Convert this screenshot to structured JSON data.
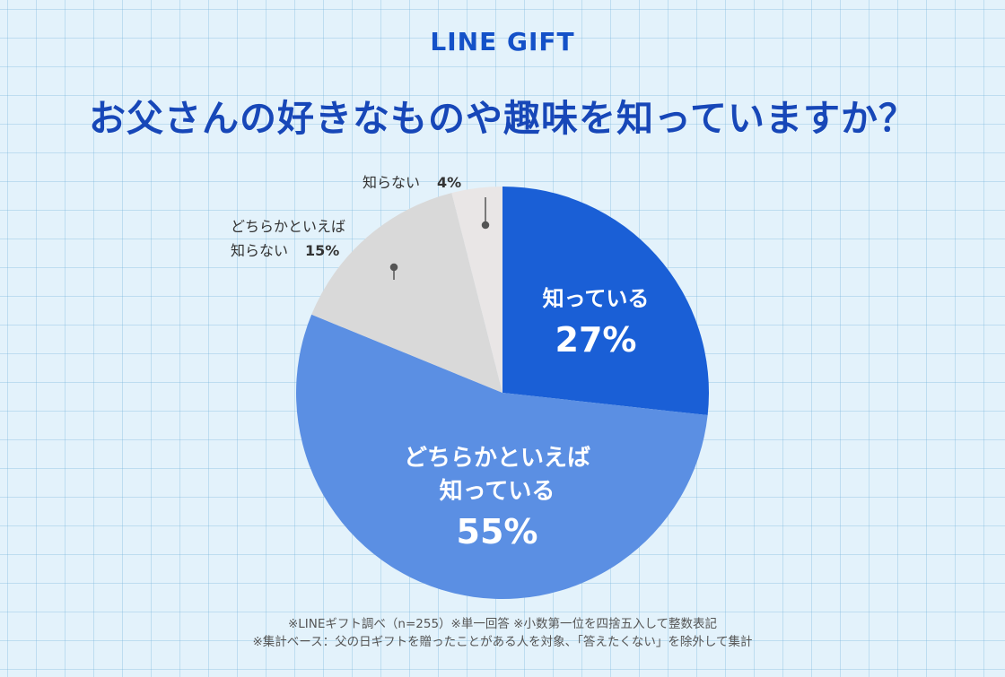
{
  "header": {
    "logo_text": "LINE GIFT",
    "title": "お父さんの好きなものや趣味を知っていますか？"
  },
  "chart_data": {
    "type": "pie",
    "title": "お父さんの好きなものや趣味を知っていますか？",
    "start": "12 o'clock",
    "direction": "clockwise",
    "slices": [
      {
        "label": "知っている",
        "value": 27,
        "value_label": "27%",
        "color": "#1a5fd6",
        "label_color": "#ffffff",
        "label_position": "inside"
      },
      {
        "label": "どちらかといえば知っている",
        "value": 55,
        "value_label": "55%",
        "color": "#5b8fe3",
        "label_color": "#ffffff",
        "label_position": "inside"
      },
      {
        "label": "どちらかといえば知らない",
        "value": 15,
        "value_label": "15%",
        "color": "#d9d9d9",
        "label_color": "#333333",
        "label_position": "outside"
      },
      {
        "label": "知らない",
        "value": 4,
        "value_label": "4%",
        "color": "#e9e6e6",
        "label_color": "#333333",
        "label_position": "outside"
      }
    ],
    "labels": {
      "s0_line1": "知っている",
      "s0_pct": "27%",
      "s1_line1": "どちらかといえば",
      "s1_line2": "知っている",
      "s1_pct": "55%",
      "s2_line1": "どちらかといえば",
      "s2_line2": "知らない",
      "s2_pct": "15%",
      "s3_line1": "知らない",
      "s3_pct": "4%"
    }
  },
  "footnotes": {
    "line1": "※LINEギフト調べ（n=255）※単一回答 ※小数第一位を四捨五入して整数表記",
    "line2": "※集計ベース：父の日ギフトを贈ったことがある人を対象、「答えたくない」を除外して集計"
  }
}
